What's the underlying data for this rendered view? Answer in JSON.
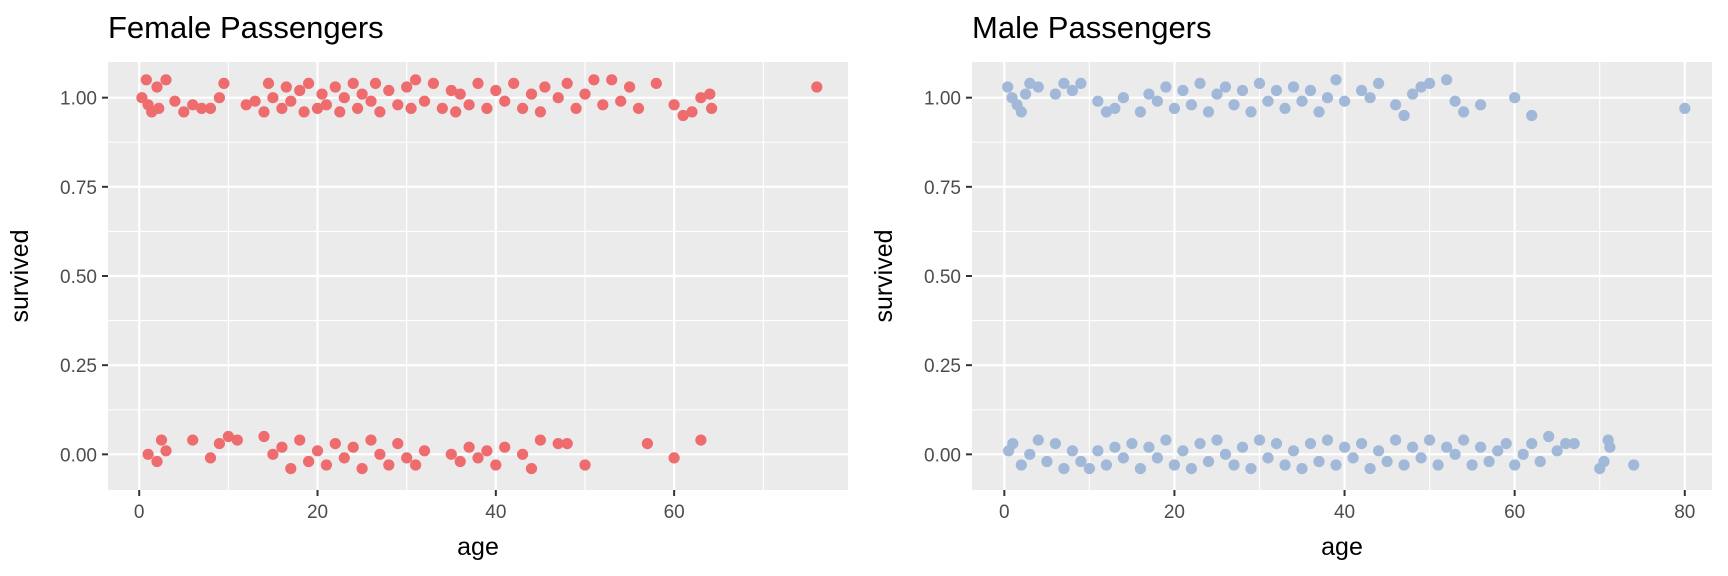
{
  "chart_data": [
    {
      "type": "scatter",
      "title": "Female Passengers",
      "xlabel": "age",
      "ylabel": "survived",
      "xlim": [
        -3.5,
        79.5
      ],
      "ylim": [
        -0.1,
        1.1
      ],
      "x_ticks": [
        0,
        20,
        40,
        60
      ],
      "x_tick_labels": [
        "0",
        "20",
        "40",
        "60"
      ],
      "y_ticks": [
        0,
        0.25,
        0.5,
        0.75,
        1
      ],
      "y_tick_labels": [
        "0.00",
        "0.25",
        "0.50",
        "0.75",
        "1.00"
      ],
      "grid": true,
      "legend": "none",
      "point_color": "#EE6B6E",
      "series": [
        {
          "points": [
            [
              0.3,
              1.0
            ],
            [
              0.8,
              1.05
            ],
            [
              1.0,
              0.98
            ],
            [
              1.4,
              0.96
            ],
            [
              2.0,
              1.03
            ],
            [
              2.2,
              0.97
            ],
            [
              3.0,
              1.05
            ],
            [
              4.0,
              0.99
            ],
            [
              5.0,
              0.96
            ],
            [
              6.0,
              0.98
            ],
            [
              7.0,
              0.97
            ],
            [
              8.0,
              0.97
            ],
            [
              9.0,
              1.0
            ],
            [
              9.5,
              1.04
            ],
            [
              12.0,
              0.98
            ],
            [
              13.0,
              0.99
            ],
            [
              14.0,
              0.96
            ],
            [
              14.5,
              1.04
            ],
            [
              15.0,
              1.0
            ],
            [
              16.0,
              0.97
            ],
            [
              16.5,
              1.03
            ],
            [
              17.0,
              0.99
            ],
            [
              18.0,
              1.02
            ],
            [
              18.5,
              0.96
            ],
            [
              19.0,
              1.04
            ],
            [
              20.0,
              0.97
            ],
            [
              20.5,
              1.01
            ],
            [
              21.0,
              0.98
            ],
            [
              22.0,
              1.03
            ],
            [
              22.5,
              0.96
            ],
            [
              23.0,
              1.0
            ],
            [
              24.0,
              1.04
            ],
            [
              24.5,
              0.97
            ],
            [
              25.0,
              1.01
            ],
            [
              26.0,
              0.99
            ],
            [
              26.5,
              1.04
            ],
            [
              27.0,
              0.96
            ],
            [
              28.0,
              1.02
            ],
            [
              29.0,
              0.98
            ],
            [
              30.0,
              1.03
            ],
            [
              30.5,
              0.97
            ],
            [
              31.0,
              1.05
            ],
            [
              32.0,
              0.99
            ],
            [
              33.0,
              1.04
            ],
            [
              34.0,
              0.97
            ],
            [
              35.0,
              1.02
            ],
            [
              35.5,
              0.96
            ],
            [
              36.0,
              1.01
            ],
            [
              37.0,
              0.98
            ],
            [
              38.0,
              1.04
            ],
            [
              39.0,
              0.97
            ],
            [
              40.0,
              1.02
            ],
            [
              41.0,
              0.99
            ],
            [
              42.0,
              1.04
            ],
            [
              43.0,
              0.97
            ],
            [
              44.0,
              1.01
            ],
            [
              45.0,
              0.96
            ],
            [
              45.5,
              1.03
            ],
            [
              47.0,
              1.0
            ],
            [
              48.0,
              1.04
            ],
            [
              49.0,
              0.97
            ],
            [
              50.0,
              1.01
            ],
            [
              51.0,
              1.05
            ],
            [
              52.0,
              0.98
            ],
            [
              53.0,
              1.05
            ],
            [
              54.0,
              0.99
            ],
            [
              55.0,
              1.03
            ],
            [
              56.0,
              0.97
            ],
            [
              58.0,
              1.04
            ],
            [
              60.0,
              0.98
            ],
            [
              61.0,
              0.95
            ],
            [
              62.0,
              0.96
            ],
            [
              63.0,
              1.0
            ],
            [
              64.0,
              1.01
            ],
            [
              64.2,
              0.97
            ],
            [
              76.0,
              1.03
            ],
            [
              1.0,
              0.0
            ],
            [
              2.0,
              -0.02
            ],
            [
              2.5,
              0.04
            ],
            [
              3.0,
              0.01
            ],
            [
              6.0,
              0.04
            ],
            [
              8.0,
              -0.01
            ],
            [
              9.0,
              0.03
            ],
            [
              10.0,
              0.05
            ],
            [
              11.0,
              0.04
            ],
            [
              14.0,
              0.05
            ],
            [
              15.0,
              0.0
            ],
            [
              16.0,
              0.02
            ],
            [
              17.0,
              -0.04
            ],
            [
              18.0,
              0.04
            ],
            [
              19.0,
              -0.02
            ],
            [
              20.0,
              0.01
            ],
            [
              21.0,
              -0.03
            ],
            [
              22.0,
              0.03
            ],
            [
              23.0,
              -0.01
            ],
            [
              24.0,
              0.02
            ],
            [
              25.0,
              -0.04
            ],
            [
              26.0,
              0.04
            ],
            [
              27.0,
              0.0
            ],
            [
              28.0,
              -0.03
            ],
            [
              29.0,
              0.03
            ],
            [
              30.0,
              -0.01
            ],
            [
              31.0,
              -0.03
            ],
            [
              32.0,
              0.01
            ],
            [
              35.0,
              0.0
            ],
            [
              36.0,
              -0.02
            ],
            [
              37.0,
              0.02
            ],
            [
              38.0,
              -0.01
            ],
            [
              39.0,
              0.01
            ],
            [
              40.0,
              -0.03
            ],
            [
              41.0,
              0.02
            ],
            [
              43.0,
              0.0
            ],
            [
              44.0,
              -0.04
            ],
            [
              45.0,
              0.04
            ],
            [
              47.0,
              0.03
            ],
            [
              48.0,
              0.03
            ],
            [
              50.0,
              -0.03
            ],
            [
              57.0,
              0.03
            ],
            [
              60.0,
              -0.01
            ],
            [
              63.0,
              0.04
            ]
          ]
        }
      ]
    },
    {
      "type": "scatter",
      "title": "Male Passengers",
      "xlabel": "age",
      "ylabel": "survived",
      "xlim": [
        -3.8,
        83.2
      ],
      "ylim": [
        -0.1,
        1.1
      ],
      "x_ticks": [
        0,
        20,
        40,
        60,
        80
      ],
      "x_tick_labels": [
        "0",
        "20",
        "40",
        "60",
        "80"
      ],
      "y_ticks": [
        0,
        0.25,
        0.5,
        0.75,
        1
      ],
      "y_tick_labels": [
        "0.00",
        "0.25",
        "0.50",
        "0.75",
        "1.00"
      ],
      "grid": true,
      "legend": "none",
      "point_color": "#A2B8D8",
      "series": [
        {
          "points": [
            [
              0.4,
              1.03
            ],
            [
              0.9,
              1.0
            ],
            [
              1.5,
              0.98
            ],
            [
              2.0,
              0.96
            ],
            [
              2.5,
              1.01
            ],
            [
              3.0,
              1.04
            ],
            [
              4.0,
              1.03
            ],
            [
              6.0,
              1.01
            ],
            [
              7.0,
              1.04
            ],
            [
              8.0,
              1.02
            ],
            [
              9.0,
              1.04
            ],
            [
              11.0,
              0.99
            ],
            [
              12.0,
              0.96
            ],
            [
              13.0,
              0.97
            ],
            [
              14.0,
              1.0
            ],
            [
              16.0,
              0.96
            ],
            [
              17.0,
              1.01
            ],
            [
              18.0,
              0.99
            ],
            [
              19.0,
              1.03
            ],
            [
              20.0,
              0.97
            ],
            [
              21.0,
              1.02
            ],
            [
              22.0,
              0.98
            ],
            [
              23.0,
              1.04
            ],
            [
              24.0,
              0.96
            ],
            [
              25.0,
              1.01
            ],
            [
              26.0,
              1.03
            ],
            [
              27.0,
              0.98
            ],
            [
              28.0,
              1.02
            ],
            [
              29.0,
              0.96
            ],
            [
              30.0,
              1.04
            ],
            [
              31.0,
              0.99
            ],
            [
              32.0,
              1.02
            ],
            [
              33.0,
              0.97
            ],
            [
              34.0,
              1.03
            ],
            [
              35.0,
              0.99
            ],
            [
              36.0,
              1.02
            ],
            [
              37.0,
              0.96
            ],
            [
              38.0,
              1.0
            ],
            [
              39.0,
              1.05
            ],
            [
              40.0,
              0.99
            ],
            [
              42.0,
              1.02
            ],
            [
              43.0,
              1.0
            ],
            [
              44.0,
              1.04
            ],
            [
              46.0,
              0.98
            ],
            [
              47.0,
              0.95
            ],
            [
              48.0,
              1.01
            ],
            [
              49.0,
              1.03
            ],
            [
              50.0,
              1.04
            ],
            [
              52.0,
              1.05
            ],
            [
              53.0,
              0.99
            ],
            [
              54.0,
              0.96
            ],
            [
              56.0,
              0.98
            ],
            [
              60.0,
              1.0
            ],
            [
              62.0,
              0.95
            ],
            [
              80.0,
              0.97
            ],
            [
              0.5,
              0.01
            ],
            [
              1.0,
              0.03
            ],
            [
              2.0,
              -0.03
            ],
            [
              3.0,
              0.0
            ],
            [
              4.0,
              0.04
            ],
            [
              5.0,
              -0.02
            ],
            [
              6.0,
              0.03
            ],
            [
              7.0,
              -0.04
            ],
            [
              8.0,
              0.01
            ],
            [
              9.0,
              -0.02
            ],
            [
              10.0,
              -0.04
            ],
            [
              11.0,
              0.01
            ],
            [
              12.0,
              -0.03
            ],
            [
              13.0,
              0.02
            ],
            [
              14.0,
              -0.01
            ],
            [
              15.0,
              0.03
            ],
            [
              16.0,
              -0.04
            ],
            [
              17.0,
              0.02
            ],
            [
              18.0,
              -0.01
            ],
            [
              19.0,
              0.04
            ],
            [
              20.0,
              -0.03
            ],
            [
              21.0,
              0.01
            ],
            [
              22.0,
              -0.04
            ],
            [
              23.0,
              0.03
            ],
            [
              24.0,
              -0.02
            ],
            [
              25.0,
              0.04
            ],
            [
              26.0,
              0.0
            ],
            [
              27.0,
              -0.03
            ],
            [
              28.0,
              0.02
            ],
            [
              29.0,
              -0.04
            ],
            [
              30.0,
              0.04
            ],
            [
              31.0,
              -0.01
            ],
            [
              32.0,
              0.03
            ],
            [
              33.0,
              -0.03
            ],
            [
              34.0,
              0.01
            ],
            [
              35.0,
              -0.04
            ],
            [
              36.0,
              0.03
            ],
            [
              37.0,
              -0.02
            ],
            [
              38.0,
              0.04
            ],
            [
              39.0,
              -0.03
            ],
            [
              40.0,
              0.02
            ],
            [
              41.0,
              -0.01
            ],
            [
              42.0,
              0.03
            ],
            [
              43.0,
              -0.04
            ],
            [
              44.0,
              0.01
            ],
            [
              45.0,
              -0.02
            ],
            [
              46.0,
              0.04
            ],
            [
              47.0,
              -0.03
            ],
            [
              48.0,
              0.02
            ],
            [
              49.0,
              -0.01
            ],
            [
              50.0,
              0.04
            ],
            [
              51.0,
              -0.03
            ],
            [
              52.0,
              0.02
            ],
            [
              53.0,
              0.0
            ],
            [
              54.0,
              0.04
            ],
            [
              55.0,
              -0.03
            ],
            [
              56.0,
              0.02
            ],
            [
              57.0,
              -0.02
            ],
            [
              58.0,
              0.01
            ],
            [
              59.0,
              0.03
            ],
            [
              60.0,
              -0.03
            ],
            [
              61.0,
              0.0
            ],
            [
              62.0,
              0.03
            ],
            [
              63.0,
              -0.02
            ],
            [
              64.0,
              0.05
            ],
            [
              65.0,
              0.01
            ],
            [
              66.0,
              0.03
            ],
            [
              67.0,
              0.03
            ],
            [
              70.0,
              -0.04
            ],
            [
              70.5,
              -0.02
            ],
            [
              71.0,
              0.04
            ],
            [
              71.2,
              0.02
            ],
            [
              74.0,
              -0.03
            ]
          ]
        }
      ]
    }
  ]
}
